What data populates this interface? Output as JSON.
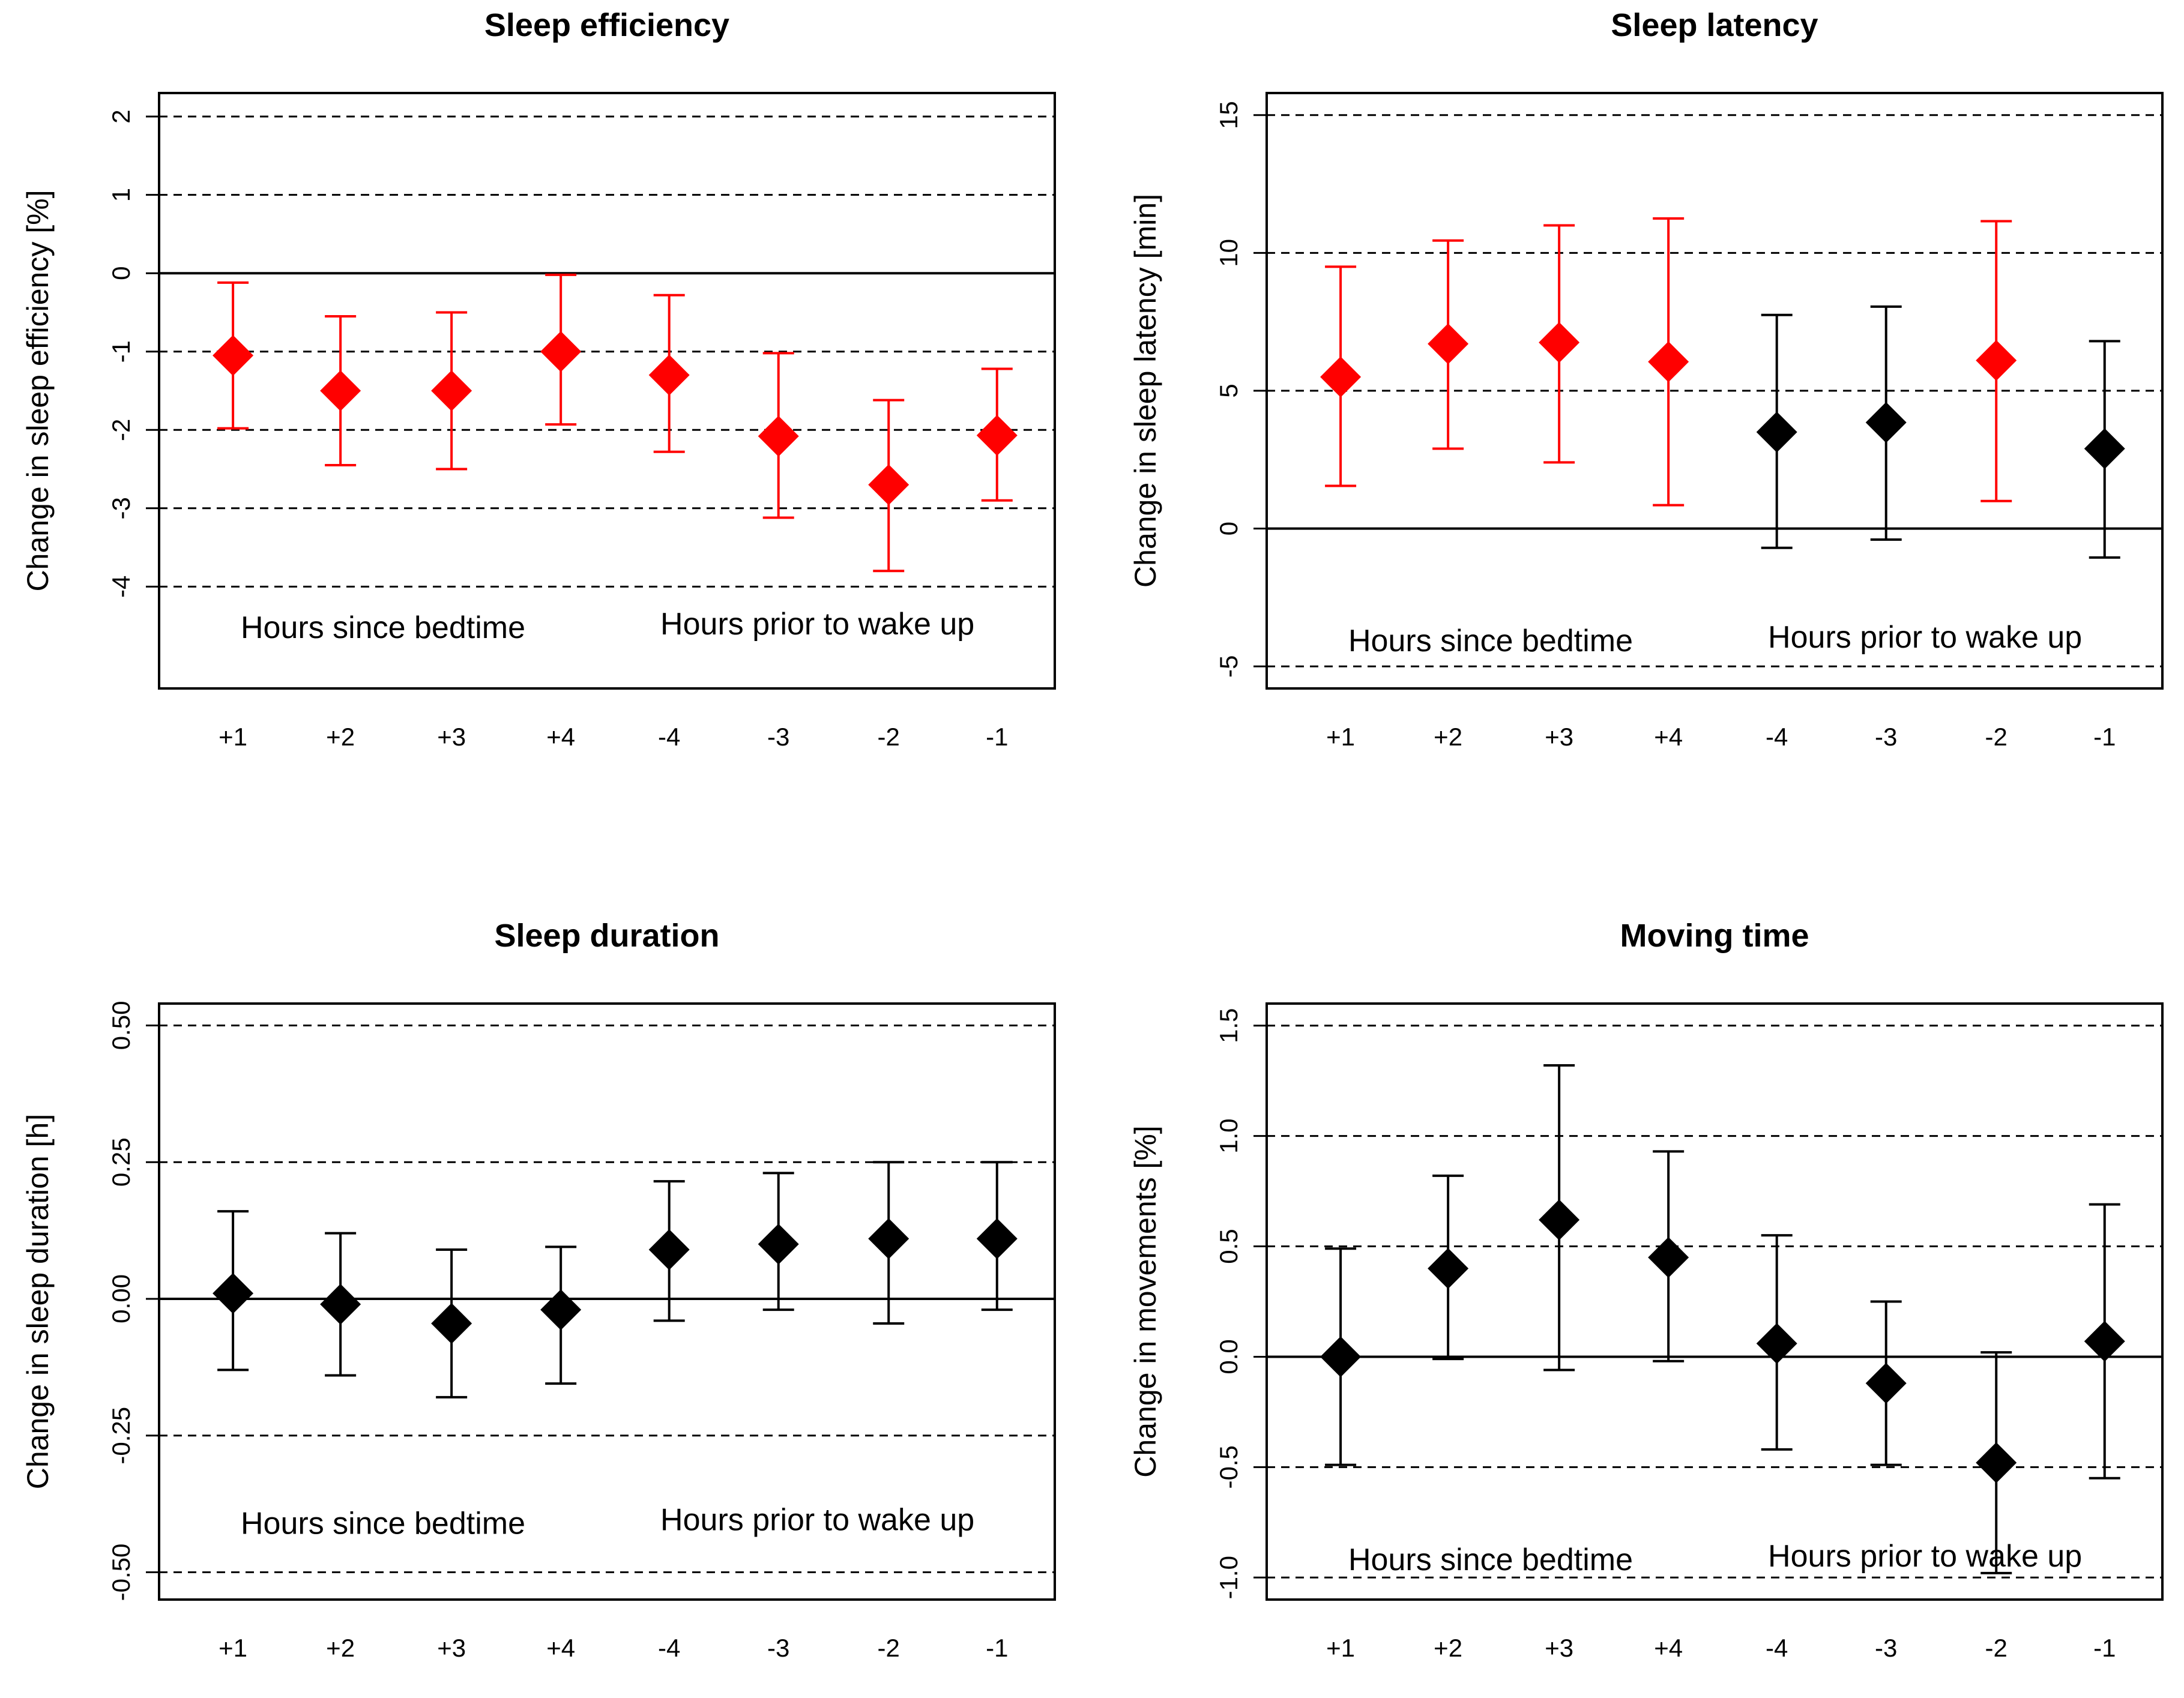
{
  "colors": {
    "significant": "#ff0000",
    "nonsignificant": "#000000",
    "axis": "#000000"
  },
  "chart_data": [
    {
      "type": "scatter",
      "title": "Sleep efficiency",
      "ylabel": "Change in sleep efficiency [%]",
      "ylim": [
        -5.3,
        2.3
      ],
      "yticks": [
        "2",
        "1",
        "0",
        "-1",
        "-2",
        "-3",
        "-4"
      ],
      "ytick_values": [
        2,
        1,
        0,
        -1,
        -2,
        -3,
        -4
      ],
      "reference_lines": [
        2,
        1,
        -1,
        -2,
        -3,
        -4
      ],
      "zero_line": 0,
      "categories": [
        "+1",
        "+2",
        "+3",
        "+4",
        "-4",
        "-3",
        "-2",
        "-1"
      ],
      "values": [
        -1.05,
        -1.5,
        -1.5,
        -1.0,
        -1.3,
        -2.08,
        -2.7,
        -2.07
      ],
      "lower": [
        -1.98,
        -2.45,
        -2.5,
        -1.93,
        -2.28,
        -3.12,
        -3.8,
        -2.9
      ],
      "upper": [
        -0.12,
        -0.55,
        -0.5,
        -0.02,
        -0.28,
        -1.02,
        -1.62,
        -1.22
      ],
      "significant": [
        true,
        true,
        true,
        true,
        true,
        true,
        true,
        true
      ],
      "annotation_left": "Hours since bedtime",
      "annotation_right": "Hours prior to wake up",
      "annotation_value": -4.55
    },
    {
      "type": "scatter",
      "title": "Sleep latency",
      "ylabel": "Change in sleep latency [min]",
      "ylim": [
        -5.8,
        15.8
      ],
      "yticks": [
        "15",
        "10",
        "5",
        "0",
        "-5"
      ],
      "ytick_values": [
        15,
        10,
        5,
        0,
        -5
      ],
      "reference_lines": [
        15,
        10,
        5,
        -5
      ],
      "zero_line": 0,
      "categories": [
        "+1",
        "+2",
        "+3",
        "+4",
        "-4",
        "-3",
        "-2",
        "-1"
      ],
      "values": [
        5.5,
        6.7,
        6.75,
        6.05,
        3.5,
        3.85,
        6.1,
        2.9
      ],
      "lower": [
        1.55,
        2.9,
        2.4,
        0.85,
        -0.7,
        -0.4,
        1.0,
        -1.05
      ],
      "upper": [
        9.5,
        10.45,
        11.0,
        11.25,
        7.75,
        8.05,
        11.15,
        6.8
      ],
      "significant": [
        true,
        true,
        true,
        true,
        false,
        false,
        true,
        false
      ],
      "annotation_left": "Hours since bedtime",
      "annotation_right": "Hours prior to wake up",
      "annotation_value": -4.15
    },
    {
      "type": "scatter",
      "title": "Sleep duration",
      "ylabel": "Change in sleep duration [h]",
      "ylim": [
        -0.55,
        0.54
      ],
      "yticks": [
        "0.50",
        "0.25",
        "0.00",
        "-0.25",
        "-0.50"
      ],
      "ytick_values": [
        0.5,
        0.25,
        0,
        -0.25,
        -0.5
      ],
      "reference_lines": [
        0.5,
        0.25,
        -0.25,
        -0.5
      ],
      "zero_line": 0,
      "categories": [
        "+1",
        "+2",
        "+3",
        "+4",
        "-4",
        "-3",
        "-2",
        "-1"
      ],
      "values": [
        0.01,
        -0.01,
        -0.045,
        -0.02,
        0.09,
        0.1,
        0.11,
        0.11
      ],
      "lower": [
        -0.13,
        -0.14,
        -0.18,
        -0.155,
        -0.04,
        -0.02,
        -0.045,
        -0.02
      ],
      "upper": [
        0.16,
        0.12,
        0.09,
        0.095,
        0.215,
        0.23,
        0.25,
        0.25
      ],
      "significant": [
        false,
        false,
        false,
        false,
        false,
        false,
        false,
        false
      ],
      "annotation_left": "Hours since bedtime",
      "annotation_right": "Hours prior to wake up",
      "annotation_value": -0.415
    },
    {
      "type": "scatter",
      "title": "Moving time",
      "ylabel": "Change in movements [%]",
      "ylim": [
        -1.1,
        1.6
      ],
      "yticks": [
        "1.5",
        "1.0",
        "0.5",
        "0.0",
        "-0.5",
        "-1.0"
      ],
      "ytick_values": [
        1.5,
        1.0,
        0.5,
        0.0,
        -0.5,
        -1.0
      ],
      "reference_lines": [
        1.5,
        1.0,
        0.5,
        -0.5,
        -1.0
      ],
      "zero_line": 0,
      "categories": [
        "+1",
        "+2",
        "+3",
        "+4",
        "-4",
        "-3",
        "-2",
        "-1"
      ],
      "values": [
        0.0,
        0.4,
        0.62,
        0.45,
        0.06,
        -0.12,
        -0.48,
        0.07
      ],
      "lower": [
        -0.49,
        -0.01,
        -0.06,
        -0.02,
        -0.42,
        -0.49,
        -0.98,
        -0.55
      ],
      "upper": [
        0.49,
        0.82,
        1.32,
        0.93,
        0.55,
        0.25,
        0.02,
        0.69
      ],
      "significant": [
        false,
        false,
        false,
        false,
        false,
        false,
        false,
        false
      ],
      "annotation_left": "Hours since bedtime",
      "annotation_right": "Hours prior to wake up",
      "annotation_value": -0.93
    }
  ]
}
